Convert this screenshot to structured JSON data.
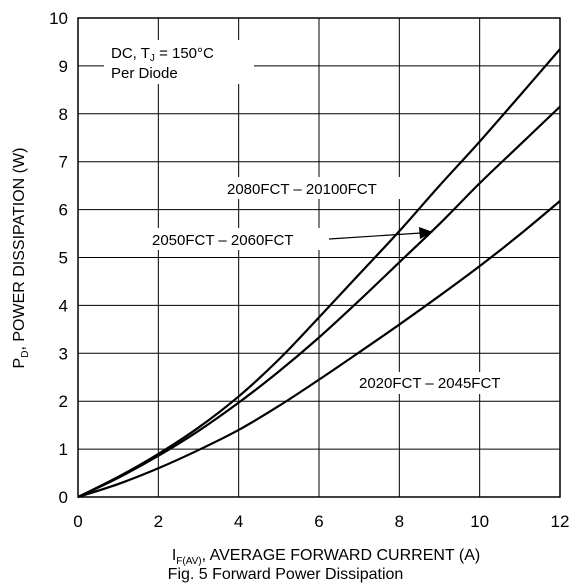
{
  "chart_data": {
    "type": "line",
    "xlim": [
      0,
      12
    ],
    "ylim": [
      0,
      10
    ],
    "xticks": [
      0,
      2,
      4,
      6,
      8,
      10,
      12
    ],
    "yticks": [
      0,
      1,
      2,
      3,
      4,
      5,
      6,
      7,
      8,
      9,
      10
    ],
    "grid": true,
    "xlabel": {
      "prefix": "I",
      "subscript": "F(AV)",
      "rest": ", AVERAGE FORWARD CURRENT (A)"
    },
    "ylabel": {
      "prefix": "P",
      "subscript": "D",
      "rest": ", POWER DISSIPATION (W)"
    },
    "caption": "Fig. 5 Forward Power Dissipation",
    "condition_box": {
      "line1_a": "DC, T",
      "line1_sub": "J",
      "line1_b": " = 150°C",
      "line2": "Per Diode"
    },
    "series": [
      {
        "name": "2080FCT – 20100FCT",
        "x": [
          0,
          1,
          2,
          3,
          4,
          5,
          6,
          7,
          8,
          9,
          10,
          11,
          12
        ],
        "y": [
          0,
          0.42,
          0.9,
          1.45,
          2.1,
          2.87,
          3.75,
          4.65,
          5.55,
          6.5,
          7.42,
          8.38,
          9.35
        ]
      },
      {
        "name": "2050FCT – 2060FCT",
        "x": [
          0,
          1,
          2,
          3,
          4,
          5,
          6,
          7,
          8,
          9,
          10,
          11,
          12
        ],
        "y": [
          0,
          0.4,
          0.86,
          1.38,
          1.97,
          2.62,
          3.33,
          4.1,
          4.9,
          5.7,
          6.55,
          7.35,
          8.15
        ]
      },
      {
        "name": "2020FCT – 2045FCT",
        "x": [
          0,
          1,
          2,
          3,
          4,
          5,
          6,
          7,
          8,
          9,
          10,
          11,
          12
        ],
        "y": [
          0,
          0.27,
          0.6,
          0.98,
          1.4,
          1.9,
          2.45,
          3.02,
          3.6,
          4.2,
          4.82,
          5.48,
          6.18
        ]
      }
    ]
  }
}
